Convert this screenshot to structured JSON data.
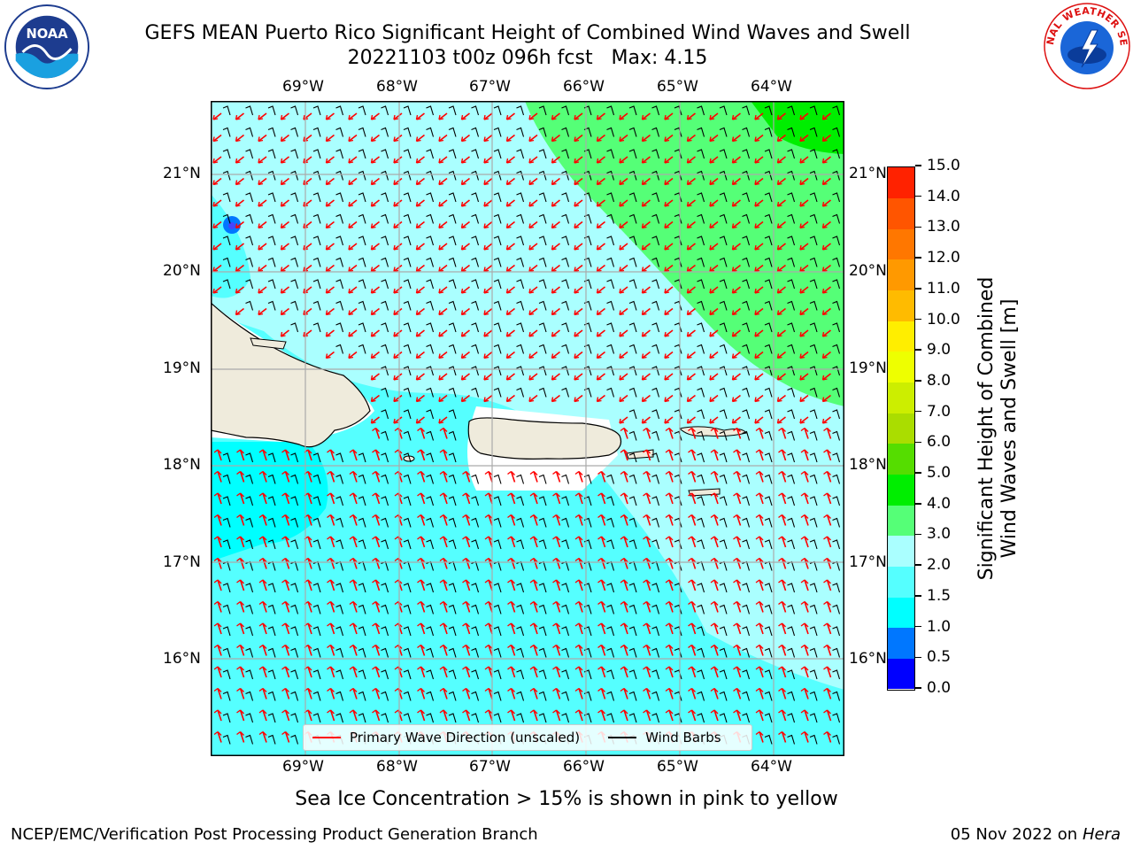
{
  "title": {
    "line1": "GEFS MEAN Puerto Rico Significant Height of Combined Wind Waves and Swell",
    "line2": "20221103 t00z 096h fcst   Max: 4.15"
  },
  "logos": {
    "left": {
      "name": "noaa-logo",
      "text": "NOAA",
      "ring_text": "NATIONAL OCEANIC AND ATMOSPHERIC ADMINISTRATION · U.S. DEPARTMENT OF COMMERCE"
    },
    "right": {
      "name": "nws-logo",
      "ring_text": "NATIONAL WEATHER SERVICE"
    }
  },
  "map": {
    "lon_labels": [
      "69°W",
      "68°W",
      "67°W",
      "66°W",
      "65°W",
      "64°W"
    ],
    "lat_labels": [
      "21°N",
      "20°N",
      "19°N",
      "18°N",
      "17°N",
      "16°N"
    ],
    "colors": {
      "land": "#efebdc",
      "wave_1_1p5": "#00ffff",
      "wave_1p5_2": "#55ffff",
      "wave_2_3": "#aaffff",
      "wave_3_4": "#55ff77",
      "wave_4_5": "#00ee00",
      "arrow": "#ff0000",
      "barb": "#000000"
    }
  },
  "legend": {
    "wave_dir_label": "Primary Wave Direction (unscaled)",
    "barbs_label": "Wind Barbs"
  },
  "colorbar": {
    "title_line1": "Significant Height of Combined",
    "title_line2": "Wind Waves and Swell [m]",
    "ticks": [
      "15.0",
      "14.0",
      "13.0",
      "12.0",
      "11.0",
      "10.0",
      "9.0",
      "8.0",
      "7.0",
      "6.0",
      "5.0",
      "4.0",
      "3.0",
      "2.0",
      "1.5",
      "1.0",
      "0.5",
      "0.0"
    ],
    "bins": [
      {
        "label": "0.0-0.5",
        "color": "#0000ff"
      },
      {
        "label": "0.5-1.0",
        "color": "#0077ff"
      },
      {
        "label": "1.0-1.5",
        "color": "#00ffff"
      },
      {
        "label": "1.5-2.0",
        "color": "#55ffff"
      },
      {
        "label": "2.0-3.0",
        "color": "#aaffff"
      },
      {
        "label": "3.0-4.0",
        "color": "#55ff77"
      },
      {
        "label": "4.0-5.0",
        "color": "#00ee00"
      },
      {
        "label": "5.0-6.0",
        "color": "#55dd00"
      },
      {
        "label": "6.0-7.0",
        "color": "#aadd00"
      },
      {
        "label": "7.0-8.0",
        "color": "#ccee00"
      },
      {
        "label": "8.0-9.0",
        "color": "#eeff00"
      },
      {
        "label": "9.0-10.0",
        "color": "#ffee00"
      },
      {
        "label": "10.0-11.0",
        "color": "#ffbb00"
      },
      {
        "label": "11.0-12.0",
        "color": "#ff9900"
      },
      {
        "label": "12.0-13.0",
        "color": "#ff7700"
      },
      {
        "label": "13.0-14.0",
        "color": "#ff5500"
      },
      {
        "label": "14.0-15.0",
        "color": "#ff2200"
      }
    ]
  },
  "subtitle": "Sea Ice Concentration > 15% is shown in pink to yellow",
  "footer": {
    "left": "NCEP/EMC/Verification Post Processing Product Generation Branch",
    "right_date": "05 Nov 2022 on",
    "right_host": "Hera"
  }
}
